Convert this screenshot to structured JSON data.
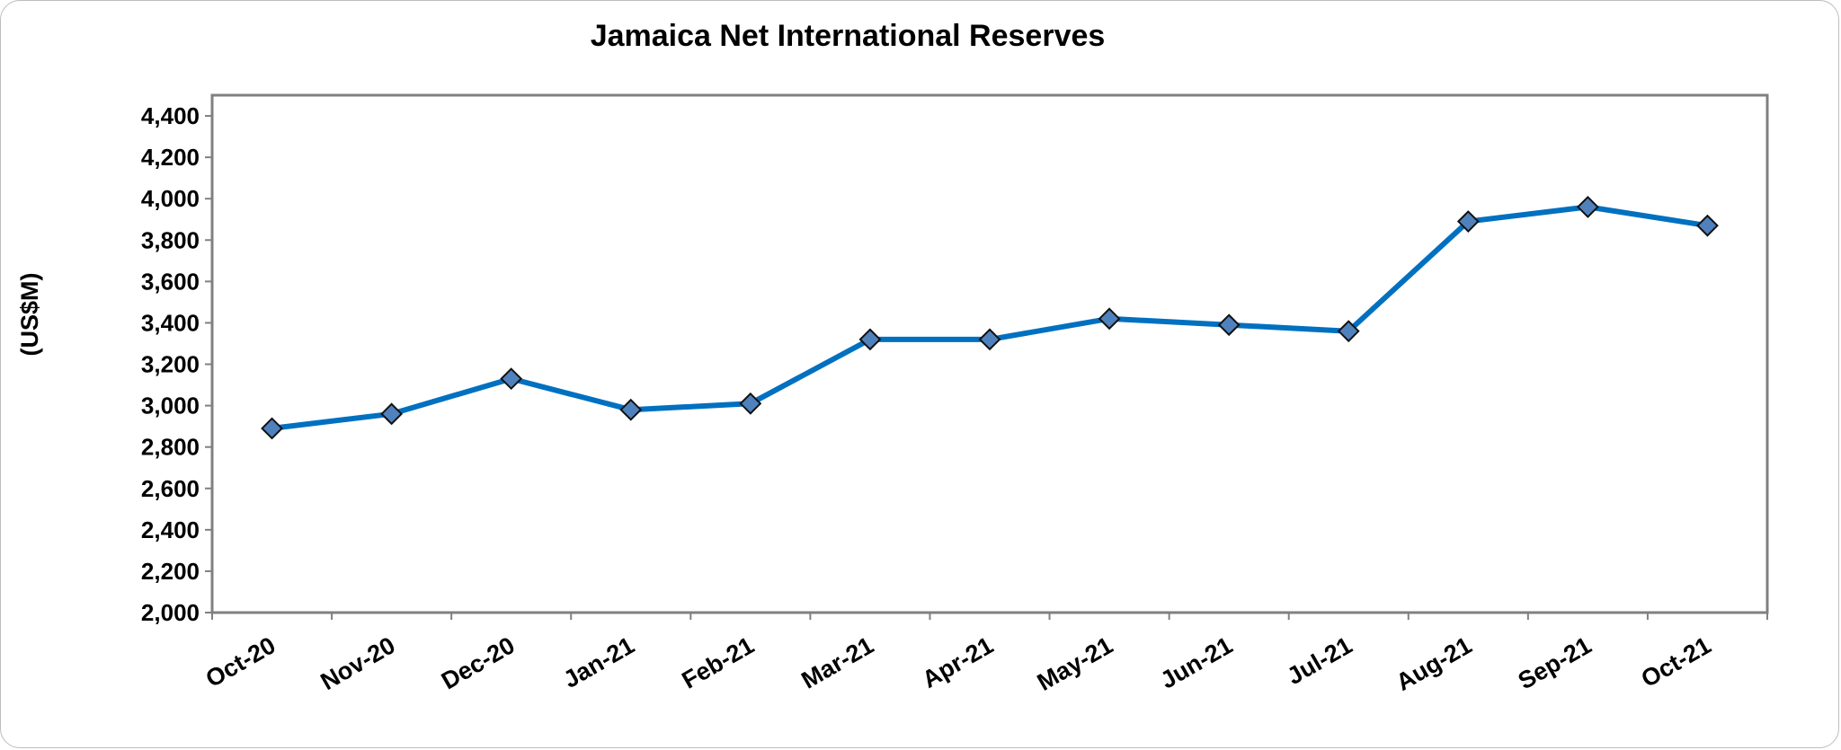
{
  "chart_data": {
    "type": "line",
    "title": "Jamaica Net International Reserves",
    "xlabel": "",
    "ylabel": "(US$M)",
    "ylim": [
      2000,
      4500
    ],
    "yticks": [
      2000,
      2200,
      2400,
      2600,
      2800,
      3000,
      3200,
      3400,
      3600,
      3800,
      4000,
      4200,
      4400
    ],
    "ytick_labels": [
      "2,000",
      "2,200",
      "2,400",
      "2,600",
      "2,800",
      "3,000",
      "3,200",
      "3,400",
      "3,600",
      "3,800",
      "4,000",
      "4,200",
      "4,400"
    ],
    "categories": [
      "Oct-20",
      "Nov-20",
      "Dec-20",
      "Jan-21",
      "Feb-21",
      "Mar-21",
      "Apr-21",
      "May-21",
      "Jun-21",
      "Jul-21",
      "Aug-21",
      "Sep-21",
      "Oct-21"
    ],
    "series": [
      {
        "values": [
          2890,
          2960,
          3130,
          2980,
          3010,
          3320,
          3320,
          3420,
          3390,
          3360,
          3890,
          3960,
          3870
        ],
        "color": "#0070c0",
        "marker": "diamond",
        "marker_color": "#4f81bd"
      }
    ],
    "grid": false,
    "legend": "none"
  }
}
